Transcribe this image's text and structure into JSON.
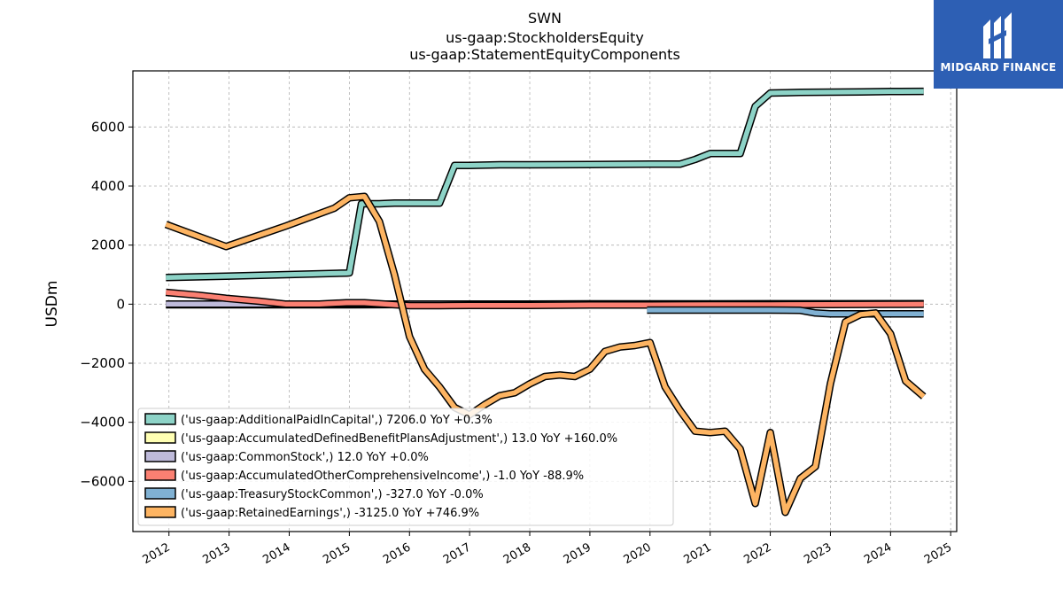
{
  "brand": {
    "name": "MIDGARD FINANCE",
    "bg_color": "#2d5fb4"
  },
  "chart_data": {
    "type": "line",
    "title": [
      "SWN",
      "us-gaap:StockholdersEquity",
      "us-gaap:StatementEquityComponents"
    ],
    "ylabel": "USDm",
    "xlabel": "",
    "xlim": [
      2011.4,
      2025.1
    ],
    "ylim": [
      -7700,
      7900
    ],
    "xticks": [
      2012,
      2013,
      2014,
      2015,
      2016,
      2017,
      2018,
      2019,
      2020,
      2021,
      2022,
      2023,
      2024,
      2025
    ],
    "yticks": [
      -6000,
      -4000,
      -2000,
      0,
      2000,
      4000,
      6000
    ],
    "grid": true,
    "legend_position": "lower-left",
    "series": [
      {
        "name": "('us-gaap:AdditionalPaidInCapital',) 7206.0 YoY +0.3%",
        "color": "#8dd3c7",
        "x": [
          2011.95,
          2012.95,
          2013.95,
          2014.95,
          2015.0,
          2015.2,
          2015.5,
          2015.75,
          2016.0,
          2016.25,
          2016.5,
          2016.75,
          2017.0,
          2017.5,
          2018.0,
          2019.0,
          2020.0,
          2020.5,
          2020.75,
          2021.0,
          2021.5,
          2021.75,
          2022.0,
          2022.5,
          2023.0,
          2023.5,
          2024.0,
          2024.55
        ],
        "y": [
          900,
          950,
          1000,
          1050,
          1060,
          3400,
          3400,
          3420,
          3420,
          3420,
          3420,
          4700,
          4700,
          4720,
          4720,
          4730,
          4740,
          4740,
          4900,
          5100,
          5100,
          6700,
          7150,
          7170,
          7180,
          7190,
          7200,
          7206
        ]
      },
      {
        "name": "('us-gaap:AccumulatedDefinedBenefitPlansAdjustment',) 13.0 YoY +160.0%",
        "color": "#ffffb3",
        "x": [
          2011.95,
          2013.0,
          2014.0,
          2015.0,
          2016.0,
          2017.0,
          2018.0,
          2019.0,
          2020.0,
          2021.0,
          2022.0,
          2023.0,
          2024.0,
          2024.55
        ],
        "y": [
          -20,
          -20,
          -20,
          -20,
          -15,
          -10,
          -10,
          -5,
          0,
          0,
          5,
          5,
          10,
          13
        ]
      },
      {
        "name": "('us-gaap:CommonStock',) 12.0 YoY +0.0%",
        "color": "#bebada",
        "x": [
          2011.95,
          2012.95,
          2013.95,
          2014.95,
          2015.25,
          2016.0,
          2017.0,
          2018.0,
          2019.0,
          2020.0,
          2021.0,
          2022.0,
          2023.0,
          2024.0,
          2024.55
        ],
        "y": [
          0,
          0,
          0,
          0,
          5,
          5,
          5,
          5,
          10,
          10,
          10,
          12,
          12,
          12,
          12
        ]
      },
      {
        "name": "('us-gaap:AccumulatedOtherComprehensiveIncome',) -1.0 YoY -88.9%",
        "color": "#fb8072",
        "x": [
          2011.95,
          2012.5,
          2012.95,
          2013.5,
          2013.95,
          2014.5,
          2014.95,
          2015.25,
          2016.0,
          2016.5,
          2017.0,
          2018.0,
          2019.0,
          2020.0,
          2021.0,
          2022.0,
          2023.0,
          2024.0,
          2024.55
        ],
        "y": [
          400,
          300,
          200,
          100,
          0,
          0,
          50,
          50,
          -50,
          -50,
          -40,
          -40,
          -30,
          -30,
          -20,
          -20,
          -10,
          -5,
          -1
        ]
      },
      {
        "name": "('us-gaap:TreasuryStockCommon',) -327.0 YoY -0.0%",
        "color": "#80b1d3",
        "x": [
          2019.95,
          2020.5,
          2021.0,
          2021.5,
          2022.0,
          2022.5,
          2022.75,
          2023.0,
          2023.5,
          2024.0,
          2024.55
        ],
        "y": [
          -200,
          -200,
          -200,
          -200,
          -200,
          -210,
          -300,
          -327,
          -327,
          -327,
          -327
        ]
      },
      {
        "name": "('us-gaap:RetainedEarnings',) -3125.0 YoY +746.9%",
        "color": "#fdb462",
        "x": [
          2011.95,
          2012.95,
          2013.95,
          2014.75,
          2015.0,
          2015.25,
          2015.5,
          2015.75,
          2016.0,
          2016.25,
          2016.5,
          2016.75,
          2017.0,
          2017.25,
          2017.5,
          2017.75,
          2018.0,
          2018.25,
          2018.5,
          2018.75,
          2019.0,
          2019.25,
          2019.5,
          2019.75,
          2020.0,
          2020.25,
          2020.5,
          2020.75,
          2021.0,
          2021.25,
          2021.5,
          2021.75,
          2022.0,
          2022.25,
          2022.5,
          2022.75,
          2023.0,
          2023.25,
          2023.5,
          2023.75,
          2024.0,
          2024.25,
          2024.55
        ],
        "y": [
          2700,
          1950,
          2650,
          3250,
          3600,
          3650,
          2800,
          1000,
          -1100,
          -2200,
          -2800,
          -3500,
          -3750,
          -3400,
          -3100,
          -3000,
          -2700,
          -2450,
          -2400,
          -2450,
          -2200,
          -1600,
          -1450,
          -1400,
          -1300,
          -2800,
          -3600,
          -4300,
          -4350,
          -4300,
          -4900,
          -6750,
          -4350,
          -7050,
          -5900,
          -5500,
          -2700,
          -600,
          -350,
          -300,
          -1000,
          -2600,
          -3125
        ]
      }
    ]
  }
}
